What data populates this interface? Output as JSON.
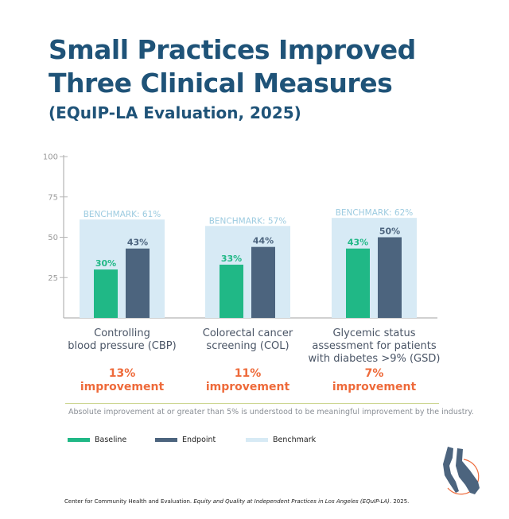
{
  "title_line1": "Small Practices Improved",
  "title_line2": "Three Clinical Measures",
  "subtitle": "(EQuIP-LA Evaluation, 2025)",
  "colors": {
    "baseline": "#20b886",
    "endpoint": "#4c647e",
    "benchmark": "#d7eaf5",
    "benchmark_text": "#9ccbe0",
    "improvement": "#ee6a3a",
    "title": "#1f5378"
  },
  "chart_data": {
    "type": "bar",
    "categories": [
      "Controlling blood pressure (CBP)",
      "Colorectal cancer screening (COL)",
      "Glycemic status assessment for patients with diabetes >9% (GSD)"
    ],
    "category_lines": [
      [
        "Controlling",
        "blood pressure (CBP)"
      ],
      [
        "Colorectal cancer",
        "screening (COL)"
      ],
      [
        "Glycemic status",
        "assessment for patients",
        "with diabetes >9% (GSD)"
      ]
    ],
    "series": [
      {
        "name": "Baseline",
        "values": [
          30,
          33,
          43
        ],
        "labels": [
          "30%",
          "33%",
          "43%"
        ]
      },
      {
        "name": "Endpoint",
        "values": [
          43,
          44,
          50
        ],
        "labels": [
          "43%",
          "44%",
          "50%"
        ]
      },
      {
        "name": "Benchmark",
        "values": [
          61,
          57,
          62
        ],
        "labels": [
          "BENCHMARK: 61%",
          "BENCHMARK: 57%",
          "BENCHMARK: 62%"
        ]
      }
    ],
    "yticks": [
      "25",
      "50",
      "75",
      "100"
    ],
    "ylim": [
      0,
      100
    ],
    "improvements": [
      {
        "pct": "13%",
        "label": "improvement"
      },
      {
        "pct": "11%",
        "label": "improvement"
      },
      {
        "pct": "7%",
        "label": "improvement"
      }
    ],
    "legend": [
      "Baseline",
      "Endpoint",
      "Benchmark"
    ],
    "legend_position": "bottom-left"
  },
  "note": "Absolute improvement at or greater than 5% is understood to be meaningful improvement by the industry.",
  "citation_prefix": "Center for Community Health and Evaluation. ",
  "citation_title": "Equity and Quality at Independent Practices in Los Angeles (EQuIP-LA)",
  "citation_suffix": ". 2025."
}
